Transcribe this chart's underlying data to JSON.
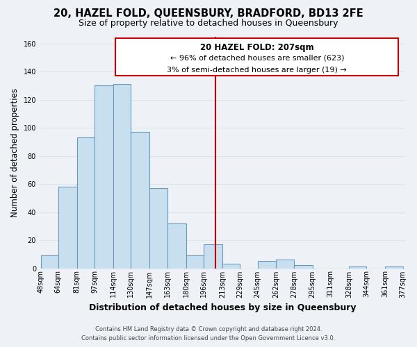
{
  "title": "20, HAZEL FOLD, QUEENSBURY, BRADFORD, BD13 2FE",
  "subtitle": "Size of property relative to detached houses in Queensbury",
  "xlabel": "Distribution of detached houses by size in Queensbury",
  "ylabel": "Number of detached properties",
  "bin_labels": [
    "48sqm",
    "64sqm",
    "81sqm",
    "97sqm",
    "114sqm",
    "130sqm",
    "147sqm",
    "163sqm",
    "180sqm",
    "196sqm",
    "213sqm",
    "229sqm",
    "245sqm",
    "262sqm",
    "278sqm",
    "295sqm",
    "311sqm",
    "328sqm",
    "344sqm",
    "361sqm",
    "377sqm"
  ],
  "bin_edges": [
    48,
    64,
    81,
    97,
    114,
    130,
    147,
    163,
    180,
    196,
    213,
    229,
    245,
    262,
    278,
    295,
    311,
    328,
    344,
    361,
    377
  ],
  "bar_heights": [
    9,
    58,
    93,
    130,
    131,
    97,
    57,
    32,
    9,
    17,
    3,
    0,
    5,
    6,
    2,
    0,
    0,
    1,
    0,
    1
  ],
  "bar_color": "#c8dff0",
  "bar_edge_color": "#6699bb",
  "property_line_x": 207,
  "property_line_color": "#cc0000",
  "annotation_title": "20 HAZEL FOLD: 207sqm",
  "annotation_line1": "← 96% of detached houses are smaller (623)",
  "annotation_line2": "3% of semi-detached houses are larger (19) →",
  "annotation_box_color": "#ffffff",
  "annotation_box_edge_color": "#cc0000",
  "ylim": [
    0,
    165
  ],
  "yticks": [
    0,
    20,
    40,
    60,
    80,
    100,
    120,
    140,
    160
  ],
  "footer_line1": "Contains HM Land Registry data © Crown copyright and database right 2024.",
  "footer_line2": "Contains public sector information licensed under the Open Government Licence v3.0.",
  "bg_color": "#eef2f7",
  "grid_color": "#d8e4f0",
  "title_fontsize": 10.5,
  "subtitle_fontsize": 9,
  "xlabel_fontsize": 9,
  "ylabel_fontsize": 8.5,
  "tick_fontsize": 7,
  "annotation_title_fontsize": 8.5,
  "annotation_text_fontsize": 8
}
